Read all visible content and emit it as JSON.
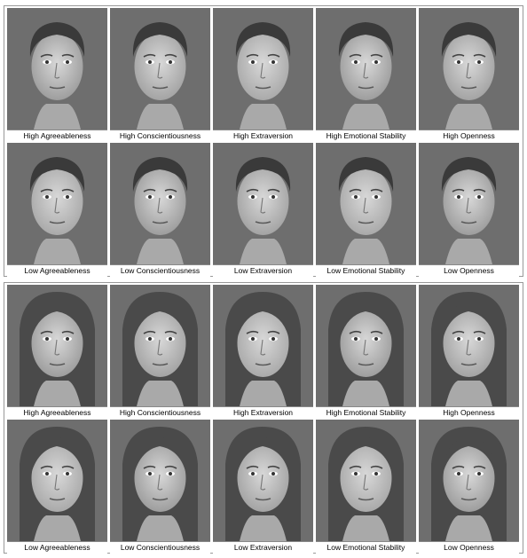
{
  "groups": [
    {
      "gender": "male",
      "rows": [
        [
          "High Agreeableness",
          "High Conscientiousness",
          "High Extraversion",
          "High Emotional Stability",
          "High Openness"
        ],
        [
          "Low Agreeableness",
          "Low Conscientiousness",
          "Low Extraversion",
          "Low Emotional Stability",
          "Low Openness"
        ]
      ]
    },
    {
      "gender": "female",
      "rows": [
        [
          "High Agreeableness",
          "High Conscientiousness",
          "High Extraversion",
          "High Emotional Stability",
          "High Openness"
        ],
        [
          "Low Agreeableness",
          "Low Conscientiousness",
          "Low Extraversion",
          "Low Emotional Stability",
          "Low Openness"
        ]
      ]
    }
  ]
}
